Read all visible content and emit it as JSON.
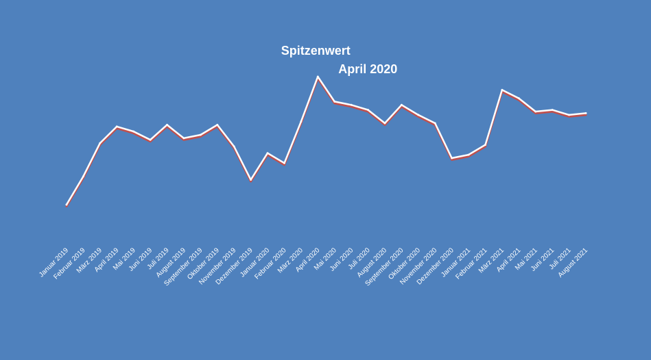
{
  "chart_data": {
    "type": "line",
    "title": "",
    "xlabel": "",
    "ylabel": "",
    "x": [
      "Januar 2019",
      "Februar 2019",
      "März 2019",
      "April 2019",
      "Mai 2019",
      "Juni 2019",
      "Juli 2019",
      "August 2019",
      "September 2019",
      "Oktober 2019",
      "November 2019",
      "Dezember 2019",
      "Januar 2020",
      "Februar 2020",
      "März 2020",
      "April 2020",
      "Mai 2020",
      "Juni 2020",
      "Juli 2020",
      "August 2020",
      "September 2020",
      "Oktober 2020",
      "November 2020",
      "Dezember 2020",
      "Januar 2021",
      "Februar 2021",
      "März 2021",
      "April 2021",
      "Mai 2021",
      "Juni 2021",
      "Juli 2021",
      "August 2021"
    ],
    "series": [
      {
        "name": "",
        "values": [
          21,
          38,
          58,
          68,
          65,
          60,
          69,
          61,
          63,
          69,
          56,
          36,
          52,
          46,
          71,
          98,
          83,
          81,
          78,
          70,
          81,
          75,
          70,
          49,
          51,
          57,
          90,
          85,
          77,
          78,
          75,
          76
        ]
      }
    ],
    "ylim": [
      0,
      105
    ],
    "grid": false,
    "legend": "none",
    "annotations": [
      {
        "lines": [
          "Spitzenwert",
          "April 2020"
        ],
        "target": "April 2020"
      }
    ],
    "colors": {
      "background": "#4f81bd",
      "line": "#ffffff",
      "shadow": "#c0504d",
      "droplines": "#ffffff"
    }
  }
}
